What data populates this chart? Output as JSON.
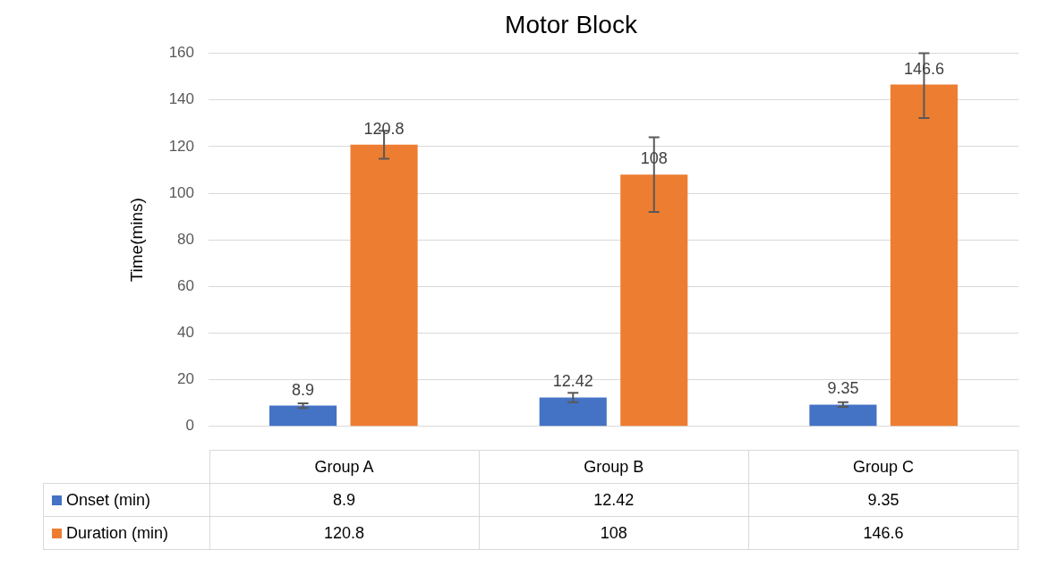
{
  "chart_data": {
    "type": "bar",
    "title": "Motor Block",
    "ylabel": "Time(mins)",
    "categories": [
      "Group A",
      "Group B",
      "Group C"
    ],
    "series": [
      {
        "name": "Onset (min)",
        "color": "#4472c4",
        "values": [
          8.9,
          12.42,
          9.35
        ],
        "value_labels": [
          "8.9",
          "12.42",
          "9.35"
        ],
        "errors": [
          1,
          2,
          1
        ]
      },
      {
        "name": "Duration (min)",
        "color": "#ed7d31",
        "values": [
          120.8,
          108,
          146.6
        ],
        "value_labels": [
          "120.8",
          "108",
          "146.6"
        ],
        "errors": [
          6,
          16,
          [
            132.2,
            160
          ]
        ]
      }
    ],
    "ylim": [
      0,
      160
    ],
    "yticks": [
      0,
      20,
      40,
      60,
      80,
      100,
      120,
      140,
      160
    ],
    "grid": "y",
    "data_labels": true,
    "legend": "bottom"
  }
}
